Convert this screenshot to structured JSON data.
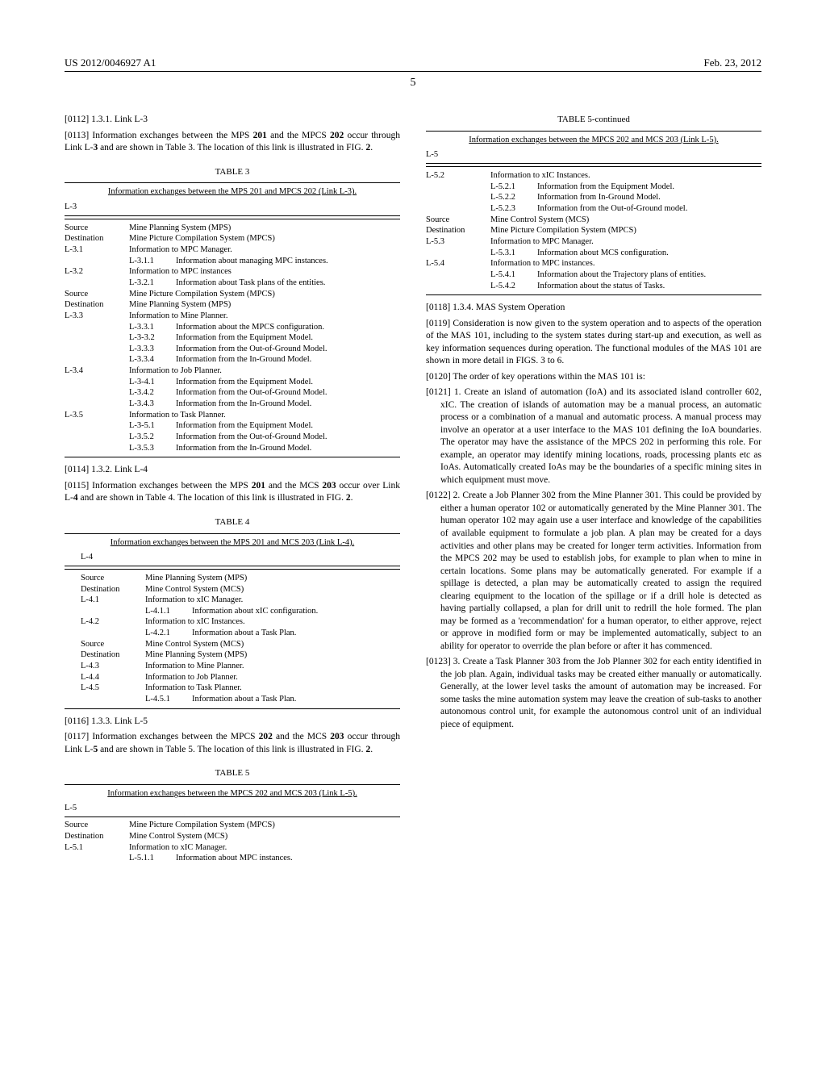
{
  "header": {
    "doc_number": "US 2012/0046927 A1",
    "date": "Feb. 23, 2012",
    "page_number": "5"
  },
  "col1": {
    "p0112": "[0112]   1.3.1. Link L-3",
    "p0113_pre": "[0113]   Information exchanges between the MPS ",
    "p0113_b1": "201",
    "p0113_mid": " and the MPCS ",
    "p0113_b2": "202",
    "p0113_mid2": " occur through Link L-",
    "p0113_b3": "3",
    "p0113_mid3": " and are shown in Table 3. The location of this link is illustrated in FIG. ",
    "p0113_b4": "2",
    "p0113_end": ".",
    "table3": {
      "label": "TABLE 3",
      "caption": "Information exchanges between the MPS 201 and MPCS 202 (Link L-3).",
      "section": "L-3",
      "rows": [
        {
          "l": "Source",
          "v": "Mine Planning System (MPS)"
        },
        {
          "l": "Destination",
          "v": "Mine Picture Compilation System (MPCS)"
        },
        {
          "l": "L-3.1",
          "v": "Information to MPC Manager."
        },
        {
          "l": "",
          "sub": "L-3.1.1",
          "v": "Information about managing MPC instances."
        },
        {
          "l": "L-3.2",
          "v": "Information to MPC instances"
        },
        {
          "l": "",
          "sub": "L-3.2.1",
          "v": "Information about Task plans of the entities."
        },
        {
          "l": "Source",
          "v": "Mine Picture Compilation System (MPCS)"
        },
        {
          "l": "Destination",
          "v": "Mine Planning System (MPS)"
        },
        {
          "l": "L-3.3",
          "v": "Information to Mine Planner."
        },
        {
          "l": "",
          "sub": "L-3.3.1",
          "v": "Information about the MPCS configuration."
        },
        {
          "l": "",
          "sub": "L-3-3.2",
          "v": "Information from the Equipment Model."
        },
        {
          "l": "",
          "sub": "L-3.3.3",
          "v": "Information from the Out-of-Ground Model."
        },
        {
          "l": "",
          "sub": "L-3.3.4",
          "v": "Information from the In-Ground Model."
        },
        {
          "l": "L-3.4",
          "v": "Information to Job Planner."
        },
        {
          "l": "",
          "sub": "L-3-4.1",
          "v": "Information from the Equipment Model."
        },
        {
          "l": "",
          "sub": "L-3.4.2",
          "v": "Information from the Out-of-Ground Model."
        },
        {
          "l": "",
          "sub": "L-3.4.3",
          "v": "Information from the In-Ground Model."
        },
        {
          "l": "L-3.5",
          "v": "Information to Task Planner."
        },
        {
          "l": "",
          "sub": "L-3-5.1",
          "v": "Information from the Equipment Model."
        },
        {
          "l": "",
          "sub": "L-3.5.2",
          "v": "Information from the Out-of-Ground Model."
        },
        {
          "l": "",
          "sub": "L-3.5.3",
          "v": "Information from the In-Ground Model."
        }
      ]
    },
    "p0114": "[0114]   1.3.2. Link L-4",
    "p0115_pre": "[0115]   Information exchanges between the MPS ",
    "p0115_b1": "201",
    "p0115_mid": " and the MCS ",
    "p0115_b2": "203",
    "p0115_mid2": " occur over Link L-",
    "p0115_b3": "4",
    "p0115_mid3": " and are shown in Table 4. The location of this link is illustrated in FIG. ",
    "p0115_b4": "2",
    "p0115_end": ".",
    "table4": {
      "label": "TABLE 4",
      "caption": "Information exchanges between the MPS 201 and MCS 203 (Link L-4).",
      "section": "L-4",
      "rows": [
        {
          "l": "Source",
          "v": "Mine Planning System (MPS)"
        },
        {
          "l": "Destination",
          "v": "Mine Control System (MCS)"
        },
        {
          "l": "L-4.1",
          "v": "Information to xIC Manager."
        },
        {
          "l": "",
          "sub": "L-4.1.1",
          "v": "Information about xIC configuration."
        },
        {
          "l": "L-4.2",
          "v": "Information to xIC Instances."
        },
        {
          "l": "",
          "sub": "L-4.2.1",
          "v": "Information about a Task Plan."
        },
        {
          "l": "Source",
          "v": "Mine Control System (MCS)"
        },
        {
          "l": "Destination",
          "v": "Mine Planning System (MPS)"
        },
        {
          "l": "L-4.3",
          "v": "Information to Mine Planner."
        },
        {
          "l": "L-4.4",
          "v": "Information to Job Planner."
        },
        {
          "l": "L-4.5",
          "v": "Information to Task Planner."
        },
        {
          "l": "",
          "sub": "L-4.5.1",
          "v": "Information about a Task Plan."
        }
      ]
    },
    "p0116": "[0116]   1.3.3. Link L-5",
    "p0117_pre": "[0117]   Information exchanges between the MPCS ",
    "p0117_b1": "202",
    "p0117_mid": " and the MCS ",
    "p0117_b2": "203",
    "p0117_mid2": " occur through Link L-",
    "p0117_b3": "5",
    "p0117_mid3": " and are shown in Table 5. The location of this link is illustrated in FIG. ",
    "p0117_b4": "2",
    "p0117_end": ".",
    "table5": {
      "label": "TABLE 5",
      "caption": "Information exchanges between the MPCS 202 and MCS 203 (Link L-5).",
      "section": "L-5",
      "rows": [
        {
          "l": "Source",
          "v": "Mine Picture Compilation System (MPCS)"
        },
        {
          "l": "Destination",
          "v": "Mine Control System (MCS)"
        },
        {
          "l": "L-5.1",
          "v": "Information to xIC Manager."
        },
        {
          "l": "",
          "sub": "L-5.1.1",
          "v": "Information about MPC instances."
        }
      ]
    }
  },
  "col2": {
    "table5c": {
      "label": "TABLE 5-continued",
      "caption": "Information exchanges between the MPCS 202 and MCS 203 (Link L-5).",
      "section": "L-5",
      "rows": [
        {
          "l": "L-5.2",
          "v": "Information to xIC Instances."
        },
        {
          "l": "",
          "sub": "L-5.2.1",
          "v": "Information from the Equipment Model."
        },
        {
          "l": "",
          "sub": "L-5.2.2",
          "v": "Information from In-Ground Model."
        },
        {
          "l": "",
          "sub": "L-5.2.3",
          "v": "Information from the Out-of-Ground model."
        },
        {
          "l": "Source",
          "v": "Mine Control System (MCS)"
        },
        {
          "l": "Destination",
          "v": "Mine Picture Compilation System (MPCS)"
        },
        {
          "l": "L-5.3",
          "v": "Information to MPC Manager."
        },
        {
          "l": "",
          "sub": "L-5.3.1",
          "v": "Information about MCS configuration."
        },
        {
          "l": "L-5.4",
          "v": "Information to MPC instances."
        },
        {
          "l": "",
          "sub": "L-5.4.1",
          "v": "Information about the Trajectory plans of entities."
        },
        {
          "l": "",
          "sub": "L-5.4.2",
          "v": "Information about the status of Tasks."
        }
      ]
    },
    "p0118": "[0118]   1.3.4. MAS System Operation",
    "p0119": "[0119]   Consideration is now given to the system operation and to aspects of the operation of the MAS 101, including to the system states during start-up and execution, as well as key information sequences during operation. The functional modules of the MAS 101 are shown in more detail in FIGS. 3 to 6.",
    "p0120": "[0120]   The order of key operations within the MAS 101 is:",
    "p0121": "[0121]   1. Create an island of automation (IoA) and its associated island controller 602, xIC. The creation of islands of automation may be a manual process, an automatic process or a combination of a manual and automatic process. A manual process may involve an operator at a user interface to the MAS 101 defining the IoA boundaries. The operator may have the assistance of the MPCS 202 in performing this role. For example, an operator may identify mining locations, roads, processing plants etc as IoAs. Automatically created IoAs may be the boundaries of a specific mining sites in which equipment must move.",
    "p0122": "[0122]   2. Create a Job Planner 302 from the Mine Planner 301. This could be provided by either a human operator 102 or automatically generated by the Mine Planner 301. The human operator 102 may again use a user interface and knowledge of the capabilities of available equipment to formulate a job plan. A plan may be created for a days activities and other plans may be created for longer term activities. Information from the MPCS 202 may be used to establish jobs, for example to plan when to mine in certain locations. Some plans may be automatically generated. For example if a spillage is detected, a plan may be automatically created to assign the required clearing equipment to the location of the spillage or if a drill hole is detected as having partially collapsed, a plan for drill unit to redrill the hole formed. The plan may be formed as a 'recommendation' for a human operator, to either approve, reject or approve in modified form or may be implemented automatically, subject to an ability for operator to override the plan before or after it has commenced.",
    "p0123": "[0123]   3. Create a Task Planner 303 from the Job Planner 302 for each entity identified in the job plan. Again, individual tasks may be created either manually or automatically. Generally, at the lower level tasks the amount of automation may be increased. For some tasks the mine automation system may leave the creation of sub-tasks to another autonomous control unit, for example the autonomous control unit of an individual piece of equipment."
  }
}
